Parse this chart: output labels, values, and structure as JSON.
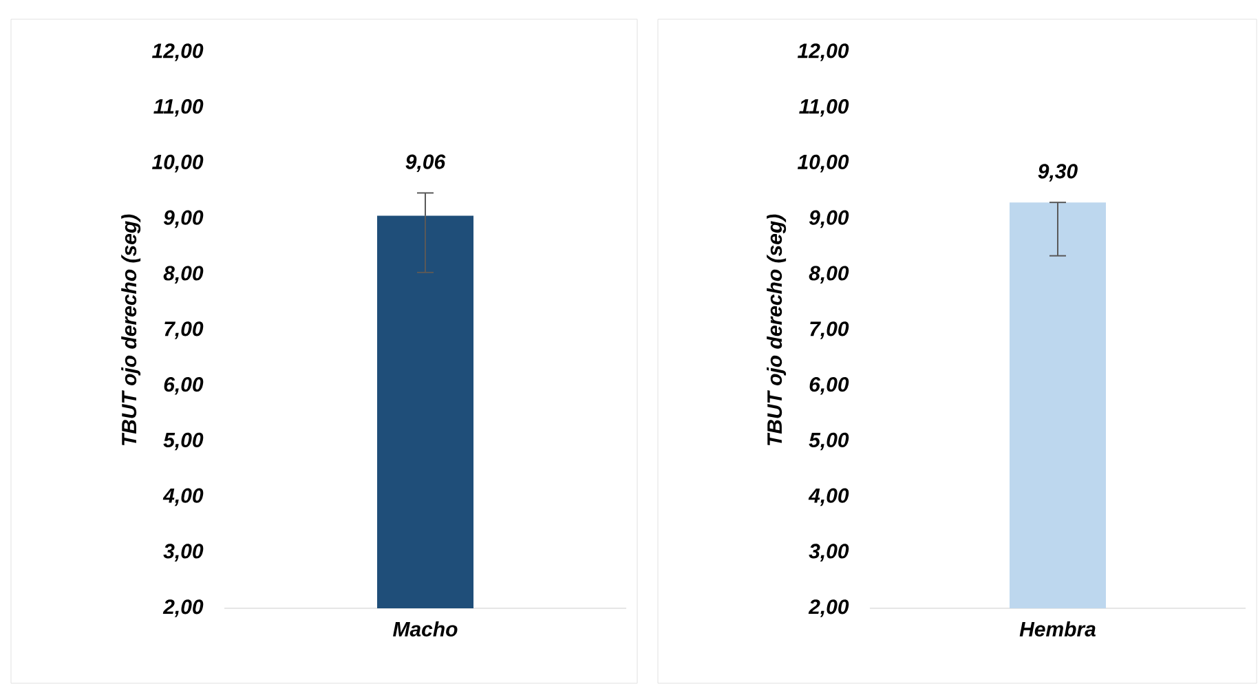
{
  "chart_data": [
    {
      "type": "bar",
      "ylabel": "TBUT ojo derecho (seg)",
      "categories": [
        "Macho"
      ],
      "values": [
        9.06
      ],
      "value_labels": [
        "9,06"
      ],
      "errors": [
        [
          8.04,
          9.47
        ]
      ],
      "color": "#1f4e79",
      "ylim": [
        2,
        12
      ],
      "yticks": [
        {
          "value": 2,
          "label": "2,00"
        },
        {
          "value": 3,
          "label": "3,00"
        },
        {
          "value": 4,
          "label": "4,00"
        },
        {
          "value": 5,
          "label": "5,00"
        },
        {
          "value": 6,
          "label": "6,00"
        },
        {
          "value": 7,
          "label": "7,00"
        },
        {
          "value": 8,
          "label": "8,00"
        },
        {
          "value": 9,
          "label": "9,00"
        },
        {
          "value": 10,
          "label": "10,00"
        },
        {
          "value": 11,
          "label": "11,00"
        },
        {
          "value": 12,
          "label": "12,00"
        }
      ]
    },
    {
      "type": "bar",
      "ylabel": "TBUT ojo derecho (seg)",
      "categories": [
        "Hembra"
      ],
      "values": [
        9.3
      ],
      "value_labels": [
        "9,30"
      ],
      "errors": [
        [
          8.34,
          9.3
        ]
      ],
      "color": "#bdd7ee",
      "ylim": [
        2,
        12
      ],
      "yticks": [
        {
          "value": 2,
          "label": "2,00"
        },
        {
          "value": 3,
          "label": "3,00"
        },
        {
          "value": 4,
          "label": "4,00"
        },
        {
          "value": 5,
          "label": "5,00"
        },
        {
          "value": 6,
          "label": "6,00"
        },
        {
          "value": 7,
          "label": "7,00"
        },
        {
          "value": 8,
          "label": "8,00"
        },
        {
          "value": 9,
          "label": "9,00"
        },
        {
          "value": 10,
          "label": "10,00"
        },
        {
          "value": 11,
          "label": "11,00"
        },
        {
          "value": 12,
          "label": "12,00"
        }
      ]
    }
  ]
}
